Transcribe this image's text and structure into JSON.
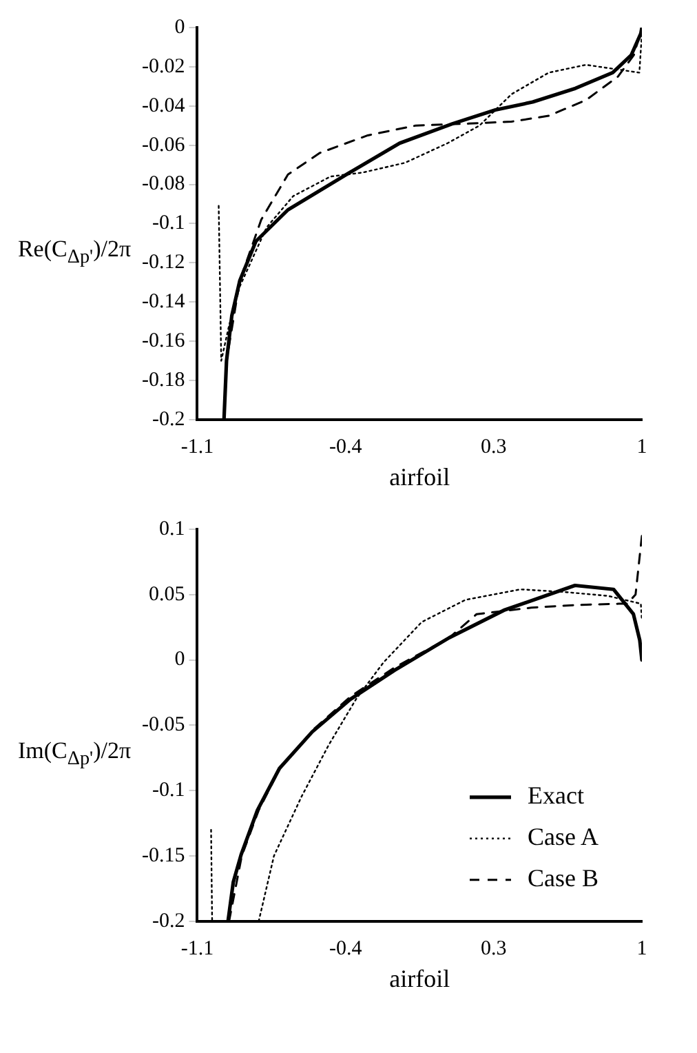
{
  "chart_data": [
    {
      "type": "line",
      "xlabel": "airfoil",
      "ylabel": "Re(C$_{Δp'}$)/2π",
      "xlim": [
        -1.1,
        1
      ],
      "xticks": [
        -1.1,
        -0.4,
        0.3,
        1
      ],
      "ylim": [
        -0.2,
        0
      ],
      "yticks": [
        0,
        -0.02,
        -0.04,
        -0.06,
        -0.08,
        -0.1,
        -0.12,
        -0.14,
        -0.16,
        -0.18,
        -0.2
      ],
      "grid": false,
      "legend": false,
      "marker": "none",
      "series": [
        {
          "color": "#000000",
          "line_style": "solid",
          "x": [
            -0.974,
            -0.962,
            -0.937,
            -0.899,
            -0.823,
            -0.672,
            -0.396,
            -0.144,
            0.107,
            0.308,
            0.484,
            0.686,
            0.862,
            0.95,
            0.995,
            1.0
          ],
          "values": [
            -0.2,
            -0.17,
            -0.147,
            -0.129,
            -0.109,
            -0.093,
            -0.075,
            -0.059,
            -0.049,
            -0.042,
            -0.038,
            -0.031,
            -0.023,
            -0.014,
            -0.003,
            0
          ]
        },
        {
          "color": "#000000",
          "line_style": "dotted",
          "x": [
            -0.999,
            -0.987,
            -0.95,
            -0.899,
            -0.773,
            -0.647,
            -0.471,
            -0.32,
            -0.119,
            0.082,
            0.233,
            0.384,
            0.56,
            0.736,
            0.862,
            0.988,
            1.0
          ],
          "values": [
            -0.091,
            -0.17,
            -0.152,
            -0.132,
            -0.102,
            -0.086,
            -0.076,
            -0.074,
            -0.069,
            -0.059,
            -0.05,
            -0.034,
            -0.023,
            -0.019,
            -0.021,
            -0.023,
            -0.003
          ]
        },
        {
          "color": "#000000",
          "line_style": "dashed",
          "x": [
            -0.974,
            -0.962,
            -0.899,
            -0.798,
            -0.672,
            -0.522,
            -0.295,
            -0.069,
            0.183,
            0.384,
            0.56,
            0.736,
            0.887,
            0.962,
            1.0
          ],
          "values": [
            -0.2,
            -0.17,
            -0.129,
            -0.098,
            -0.075,
            -0.064,
            -0.055,
            -0.05,
            -0.049,
            -0.048,
            -0.045,
            -0.037,
            -0.025,
            -0.014,
            0
          ]
        }
      ]
    },
    {
      "type": "line",
      "xlabel": "airfoil",
      "ylabel": "Im(C$_{Δp'}$)/2π",
      "xlim": [
        -1.1,
        1
      ],
      "xticks": [
        -1.1,
        -0.4,
        0.3,
        1
      ],
      "ylim": [
        -0.2,
        0.1
      ],
      "yticks": [
        0.1,
        0.05,
        0,
        -0.05,
        -0.1,
        -0.15,
        -0.2
      ],
      "grid": false,
      "legend": "bottom right",
      "marker": "none",
      "series": [
        {
          "name": "Exact",
          "color": "#000000",
          "line_style": "solid",
          "x": [
            -0.955,
            -0.93,
            -0.893,
            -0.816,
            -0.712,
            -0.557,
            -0.376,
            -0.169,
            0.09,
            0.348,
            0.684,
            0.866,
            0.96,
            0.99,
            1.0
          ],
          "values": [
            -0.2,
            -0.17,
            -0.149,
            -0.115,
            -0.083,
            -0.055,
            -0.03,
            -0.008,
            0.017,
            0.038,
            0.057,
            0.054,
            0.035,
            0.015,
            0
          ]
        },
        {
          "name": "Case A",
          "color": "#000000",
          "line_style": "dotted",
          "x": [
            -1.035,
            -1.03,
            -1.0,
            -0.81,
            -0.738,
            -0.609,
            -0.479,
            -0.35,
            -0.221,
            -0.04,
            0.167,
            0.426,
            0.633,
            0.84,
            0.995,
            1.0
          ],
          "values": [
            -0.13,
            -0.2,
            null,
            -0.2,
            -0.15,
            -0.105,
            -0.065,
            -0.03,
            -0.002,
            0.029,
            0.046,
            0.054,
            0.052,
            0.049,
            0.043,
            0.03
          ]
        },
        {
          "name": "Case B",
          "color": "#000000",
          "line_style": "dashed",
          "x": [
            -0.95,
            -0.89,
            -0.81,
            -0.71,
            -0.55,
            -0.376,
            -0.17,
            0.09,
            0.219,
            0.478,
            0.684,
            0.891,
            0.93,
            0.97,
            1.0
          ],
          "values": [
            -0.2,
            -0.15,
            -0.115,
            -0.083,
            -0.053,
            -0.028,
            -0.006,
            0.017,
            0.035,
            0.04,
            0.042,
            0.043,
            0.043,
            0.05,
            0.095
          ]
        }
      ]
    }
  ]
}
